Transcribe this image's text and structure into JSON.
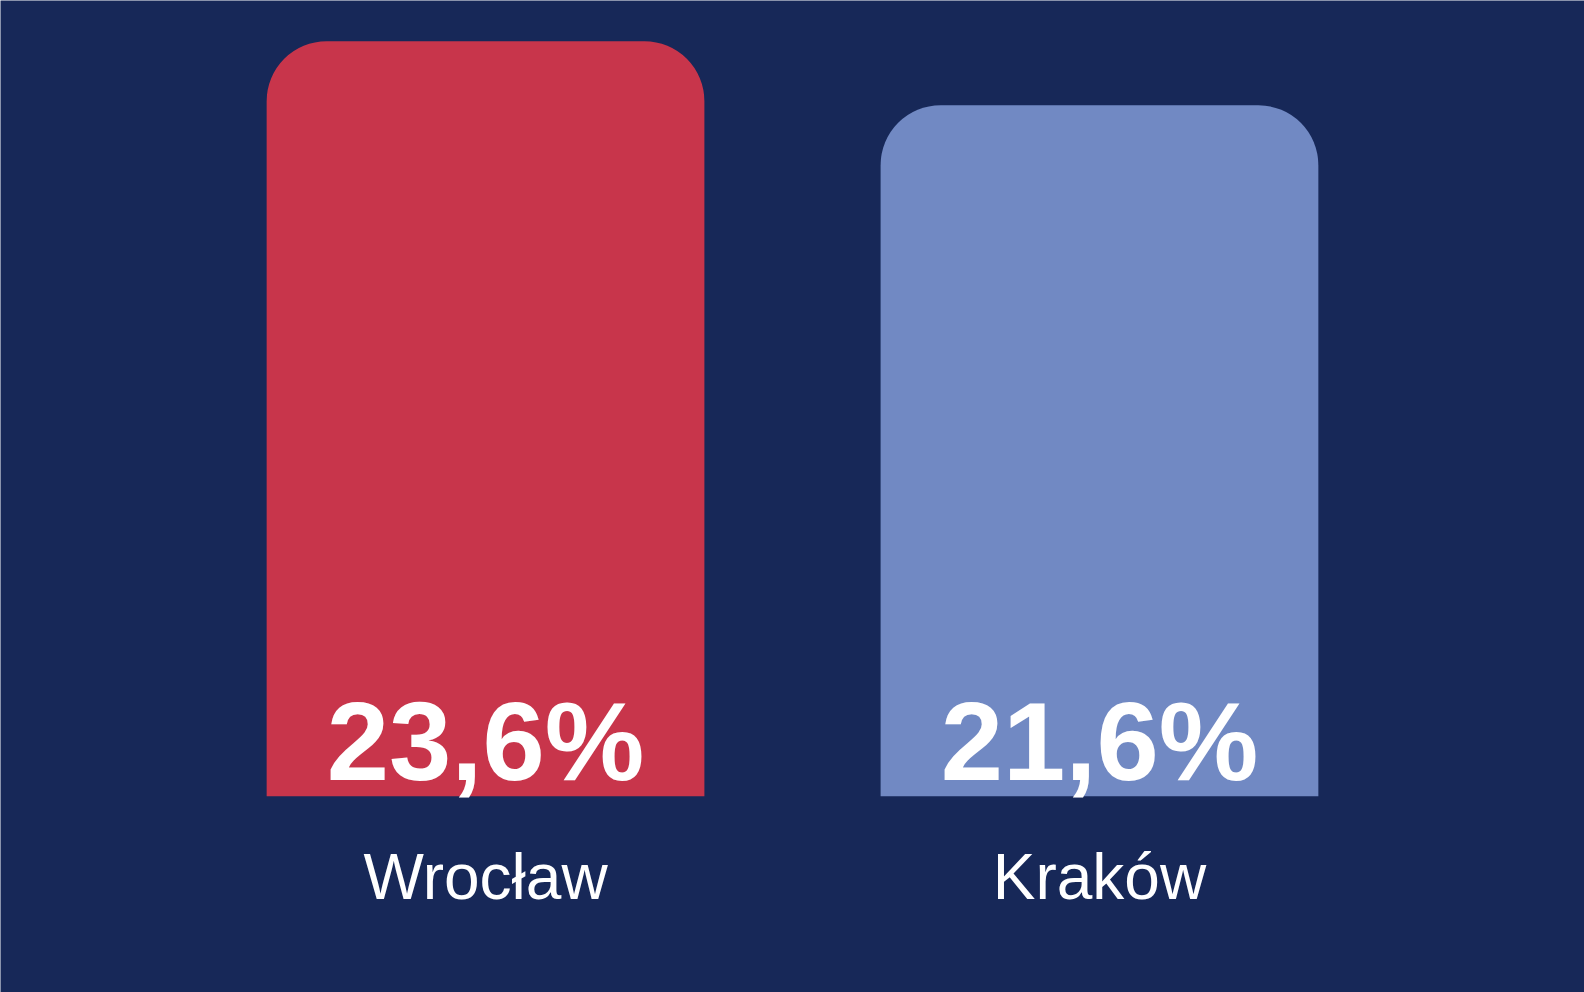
{
  "chart_data": {
    "type": "bar",
    "categories": [
      "Wrocław",
      "Kraków"
    ],
    "values": [
      23.6,
      21.6
    ],
    "colors": [
      "#c8354b",
      "#7189c3"
    ],
    "value_labels": [
      "23,6%",
      "21,6%"
    ]
  }
}
